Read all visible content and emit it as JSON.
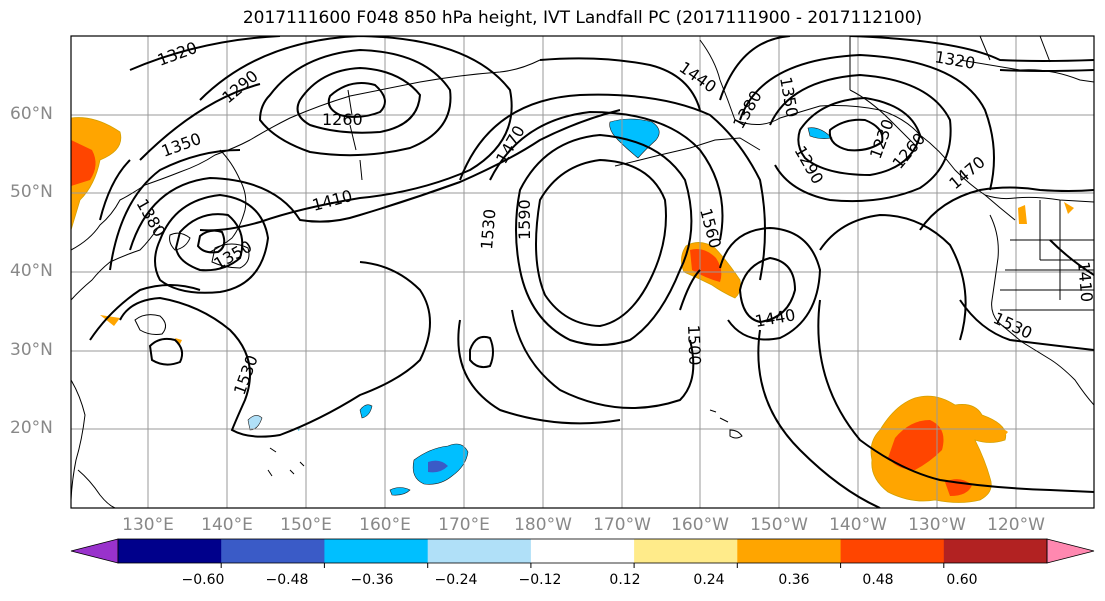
{
  "title": "2017111600 F048 850 hPa height, IVT Landfall PC (2017111900 - 2017112100)",
  "lat_labels": [
    "60°N",
    "50°N",
    "40°N",
    "30°N",
    "20°N"
  ],
  "lon_labels": [
    "130°E",
    "140°E",
    "150°E",
    "160°E",
    "170°E",
    "180°W",
    "170°W",
    "160°W",
    "150°W",
    "140°W",
    "130°W",
    "120°W"
  ],
  "contour_labels": [
    "1320",
    "1290",
    "1260",
    "1350",
    "1380",
    "1410",
    "1350",
    "1470",
    "1530",
    "1590",
    "1560",
    "1500",
    "1440",
    "1530",
    "1380",
    "1350",
    "1290",
    "1320",
    "1470",
    "1530",
    "1410",
    "1440",
    "1230",
    "1260"
  ],
  "colorbar": {
    "colors": [
      "#9932cc",
      "#00008b",
      "#3a5bc7",
      "#00bfff",
      "#b0e0f8",
      "#ffffff",
      "#ffeb8a",
      "#ffa500",
      "#ff4500",
      "#b22222",
      "#ff88b0"
    ],
    "ticks": [
      "−0.60",
      "−0.48",
      "−0.36",
      "−0.24",
      "−0.12",
      "0.12",
      "0.24",
      "0.36",
      "0.48",
      "0.60"
    ]
  },
  "colors": {
    "contour": "#000000",
    "grid": "#999999",
    "coast": "#000000",
    "axis_label": "#888888"
  }
}
